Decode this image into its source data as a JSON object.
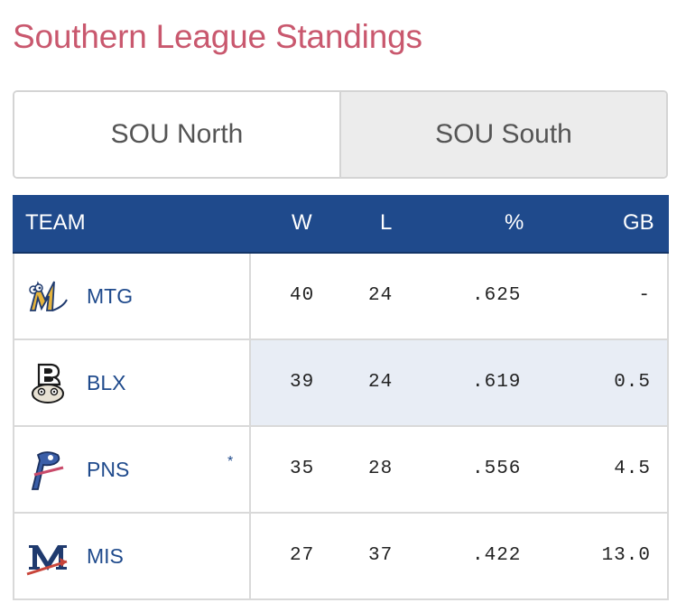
{
  "title": "Southern League Standings",
  "tabs": [
    {
      "label": "SOU North",
      "active": true
    },
    {
      "label": "SOU South",
      "active": false
    }
  ],
  "columns": {
    "team": "TEAM",
    "w": "W",
    "l": "L",
    "pct": "%",
    "gb": "GB"
  },
  "rows": [
    {
      "abbr": "MTG",
      "marker": "",
      "w": "40",
      "l": "24",
      "pct": ".625",
      "gb": "-",
      "logo": "mtg-logo"
    },
    {
      "abbr": "BLX",
      "marker": "",
      "w": "39",
      "l": "24",
      "pct": ".619",
      "gb": "0.5",
      "logo": "blx-logo"
    },
    {
      "abbr": "PNS",
      "marker": "*",
      "w": "35",
      "l": "28",
      "pct": ".556",
      "gb": "4.5",
      "logo": "pns-logo"
    },
    {
      "abbr": "MIS",
      "marker": "",
      "w": "27",
      "l": "37",
      "pct": ".422",
      "gb": "13.0",
      "logo": "mis-logo"
    }
  ],
  "colors": {
    "header_bg": "#1f4a8c",
    "title": "#c9586e",
    "link": "#1f4a8c",
    "highlight": "#e8edf5"
  }
}
